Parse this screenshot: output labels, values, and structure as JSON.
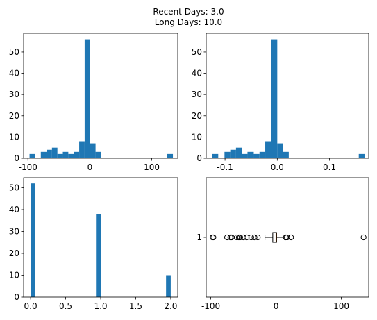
{
  "chart_data": {
    "suptitle": [
      "Recent Days: 3.0",
      "Long Days: 10.0"
    ],
    "bar_color": "#1f77b4",
    "median_color": "#ff7f0e",
    "panels": [
      {
        "type": "bar",
        "xlim": [
          -107,
          142
        ],
        "ylim": [
          0,
          58.8
        ],
        "xticks": [
          -100,
          0,
          100
        ],
        "yticks": [
          0,
          10,
          20,
          30,
          40,
          50
        ],
        "bins": [
          {
            "x0": -97.4,
            "x1": -88.0,
            "y": 2
          },
          {
            "x0": -79.2,
            "x1": -70.0,
            "y": 3
          },
          {
            "x0": -70.0,
            "x1": -61.2,
            "y": 4
          },
          {
            "x0": -61.2,
            "x1": -52.4,
            "y": 5
          },
          {
            "x0": -52.4,
            "x1": -43.6,
            "y": 2
          },
          {
            "x0": -43.6,
            "x1": -34.8,
            "y": 3
          },
          {
            "x0": -34.8,
            "x1": -26.0,
            "y": 2
          },
          {
            "x0": -26.0,
            "x1": -17.2,
            "y": 3
          },
          {
            "x0": -17.2,
            "x1": -8.4,
            "y": 8
          },
          {
            "x0": -8.4,
            "x1": 0.4,
            "y": 56
          },
          {
            "x0": 0.4,
            "x1": 9.2,
            "y": 7
          },
          {
            "x0": 9.2,
            "x1": 18.0,
            "y": 3
          },
          {
            "x0": 125.0,
            "x1": 134.2,
            "y": 2
          }
        ]
      },
      {
        "type": "bar",
        "xlim": [
          -0.136,
          0.175
        ],
        "ylim": [
          0,
          58.8
        ],
        "xticks": [
          -0.1,
          0.0,
          0.1
        ],
        "yticks": [
          0,
          10,
          20,
          30,
          40,
          50
        ],
        "bins": [
          {
            "x0": -0.125,
            "x1": -0.113,
            "y": 2
          },
          {
            "x0": -0.101,
            "x1": -0.09,
            "y": 3
          },
          {
            "x0": -0.09,
            "x1": -0.079,
            "y": 4
          },
          {
            "x0": -0.079,
            "x1": -0.068,
            "y": 5
          },
          {
            "x0": -0.068,
            "x1": -0.057,
            "y": 2
          },
          {
            "x0": -0.057,
            "x1": -0.045,
            "y": 3
          },
          {
            "x0": -0.045,
            "x1": -0.034,
            "y": 2
          },
          {
            "x0": -0.034,
            "x1": -0.023,
            "y": 3
          },
          {
            "x0": -0.023,
            "x1": -0.012,
            "y": 8
          },
          {
            "x0": -0.012,
            "x1": 0.0,
            "y": 56
          },
          {
            "x0": 0.0,
            "x1": 0.011,
            "y": 7
          },
          {
            "x0": 0.011,
            "x1": 0.022,
            "y": 3
          },
          {
            "x0": 0.156,
            "x1": 0.167,
            "y": 2
          }
        ]
      },
      {
        "type": "bar",
        "xlim": [
          -0.1,
          2.1
        ],
        "ylim": [
          0,
          54.6
        ],
        "xticks": [
          0.0,
          0.5,
          1.0,
          1.5,
          2.0
        ],
        "xtick_labels": [
          "0.0",
          "0.5",
          "1.0",
          "1.5",
          "2.0"
        ],
        "yticks": [
          0,
          10,
          20,
          30,
          40,
          50
        ],
        "bins": [
          {
            "x0": 0.0,
            "x1": 0.067,
            "y": 52
          },
          {
            "x0": 0.933,
            "x1": 1.0,
            "y": 38
          },
          {
            "x0": 1.933,
            "x1": 2.0,
            "y": 10
          }
        ]
      },
      {
        "type": "box",
        "xlim": [
          -107,
          142
        ],
        "xticks": [
          -100,
          0,
          100
        ],
        "ytick_label": "1",
        "box": {
          "q1": -5,
          "median": 0,
          "q3": 1,
          "whisker_low": -17,
          "whisker_high": 13
        },
        "fliers": [
          -97.4,
          -96.0,
          -75.0,
          -70.0,
          -68.0,
          -60.0,
          -57.0,
          -55.0,
          -50.0,
          -45.0,
          -38.0,
          -33.0,
          -28.0,
          15.0,
          17.0,
          23.0,
          134.2
        ]
      }
    ]
  }
}
